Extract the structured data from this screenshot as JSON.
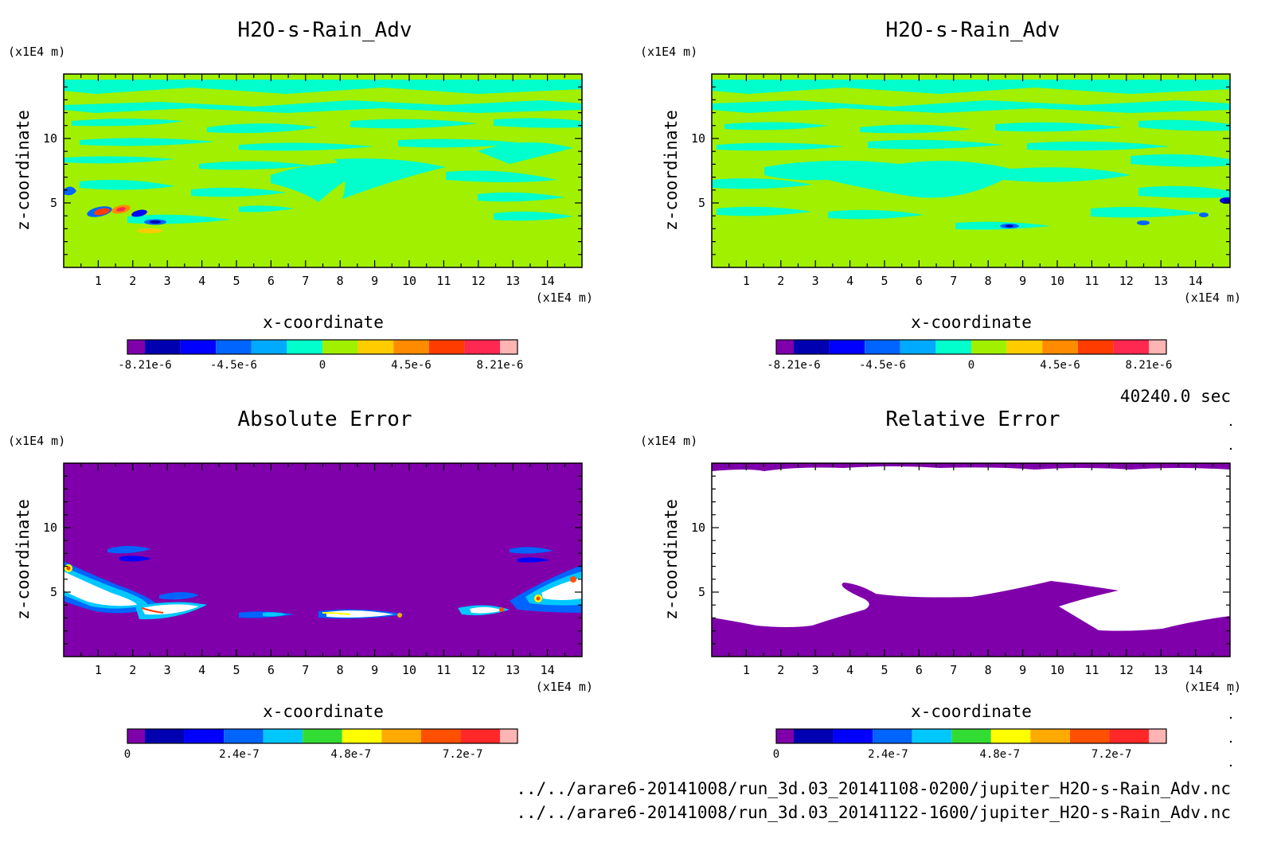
{
  "chart_data": [
    {
      "type": "heatmap",
      "title": "H2O-s-Rain_Adv",
      "xlabel": "x-coordinate",
      "ylabel": "z-coordinate",
      "x_unit": "(x1E4 m)",
      "y_unit": "(x1E4 m)",
      "xlim": [
        0,
        15
      ],
      "ylim": [
        0,
        15
      ],
      "x_ticks": [
        "1",
        "2",
        "3",
        "4",
        "5",
        "6",
        "7",
        "8",
        "9",
        "10",
        "11",
        "12",
        "13",
        "14"
      ],
      "y_ticks": [
        "5",
        "10"
      ],
      "background": "#a0f000",
      "colorbar": {
        "colors": [
          "#7f00aa",
          "#0000b0",
          "#0000ff",
          "#0064ff",
          "#00aaff",
          "#00ffcc",
          "#a0f000",
          "#ffcc00",
          "#ff8c00",
          "#ff3c00",
          "#ff2850",
          "#ffb4b4"
        ],
        "labels": [
          "-8.21e-6",
          "-4.5e-6",
          "0",
          "4.5e-6",
          "8.21e-6"
        ]
      }
    },
    {
      "type": "heatmap",
      "title": "H2O-s-Rain_Adv",
      "xlabel": "x-coordinate",
      "ylabel": "z-coordinate",
      "x_unit": "(x1E4 m)",
      "y_unit": "(x1E4 m)",
      "xlim": [
        0,
        15
      ],
      "ylim": [
        0,
        15
      ],
      "x_ticks": [
        "1",
        "2",
        "3",
        "4",
        "5",
        "6",
        "7",
        "8",
        "9",
        "10",
        "11",
        "12",
        "13",
        "14"
      ],
      "y_ticks": [
        "5",
        "10"
      ],
      "background": "#a0f000",
      "colorbar": {
        "colors": [
          "#7f00aa",
          "#0000b0",
          "#0000ff",
          "#0064ff",
          "#00aaff",
          "#00ffcc",
          "#a0f000",
          "#ffcc00",
          "#ff8c00",
          "#ff3c00",
          "#ff2850",
          "#ffb4b4"
        ],
        "labels": [
          "-8.21e-6",
          "-4.5e-6",
          "0",
          "4.5e-6",
          "8.21e-6"
        ]
      }
    },
    {
      "type": "heatmap",
      "title": "Absolute Error",
      "xlabel": "x-coordinate",
      "ylabel": "z-coordinate",
      "x_unit": "(x1E4 m)",
      "y_unit": "(x1E4 m)",
      "xlim": [
        0,
        15
      ],
      "ylim": [
        0,
        15
      ],
      "x_ticks": [
        "1",
        "2",
        "3",
        "4",
        "5",
        "6",
        "7",
        "8",
        "9",
        "10",
        "11",
        "12",
        "13",
        "14"
      ],
      "y_ticks": [
        "5",
        "10"
      ],
      "background": "#7f00aa",
      "colorbar": {
        "colors": [
          "#7f00aa",
          "#0000b0",
          "#0000ff",
          "#0064ff",
          "#00c8ff",
          "#32dc32",
          "#ffff00",
          "#ffaa00",
          "#ff5000",
          "#ff2828",
          "#ffb4b4"
        ],
        "labels": [
          "0",
          "2.4e-7",
          "4.8e-7",
          "7.2e-7"
        ]
      }
    },
    {
      "type": "heatmap",
      "title": "Relative Error",
      "xlabel": "x-coordinate",
      "ylabel": "z-coordinate",
      "x_unit": "(x1E4 m)",
      "y_unit": "(x1E4 m)",
      "xlim": [
        0,
        15
      ],
      "ylim": [
        0,
        15
      ],
      "x_ticks": [
        "1",
        "2",
        "3",
        "4",
        "5",
        "6",
        "7",
        "8",
        "9",
        "10",
        "11",
        "12",
        "13",
        "14"
      ],
      "y_ticks": [
        "5",
        "10"
      ],
      "background": "#7f00aa",
      "colorbar": {
        "colors": [
          "#7f00aa",
          "#0000b0",
          "#0000ff",
          "#0064ff",
          "#00c8ff",
          "#32dc32",
          "#ffff00",
          "#ffaa00",
          "#ff5000",
          "#ff2828",
          "#ffb4b4"
        ],
        "labels": [
          "0",
          "2.4e-7",
          "4.8e-7",
          "7.2e-7"
        ]
      }
    }
  ],
  "time_label": "40240.0 sec",
  "file_paths": [
    "../../arare6-20141008/run_3d.03_20141108-0200/jupiter_H2O-s-Rain_Adv.nc",
    "../../arare6-20141008/run_3d.03_20141122-1600/jupiter_H2O-s-Rain_Adv.nc"
  ]
}
